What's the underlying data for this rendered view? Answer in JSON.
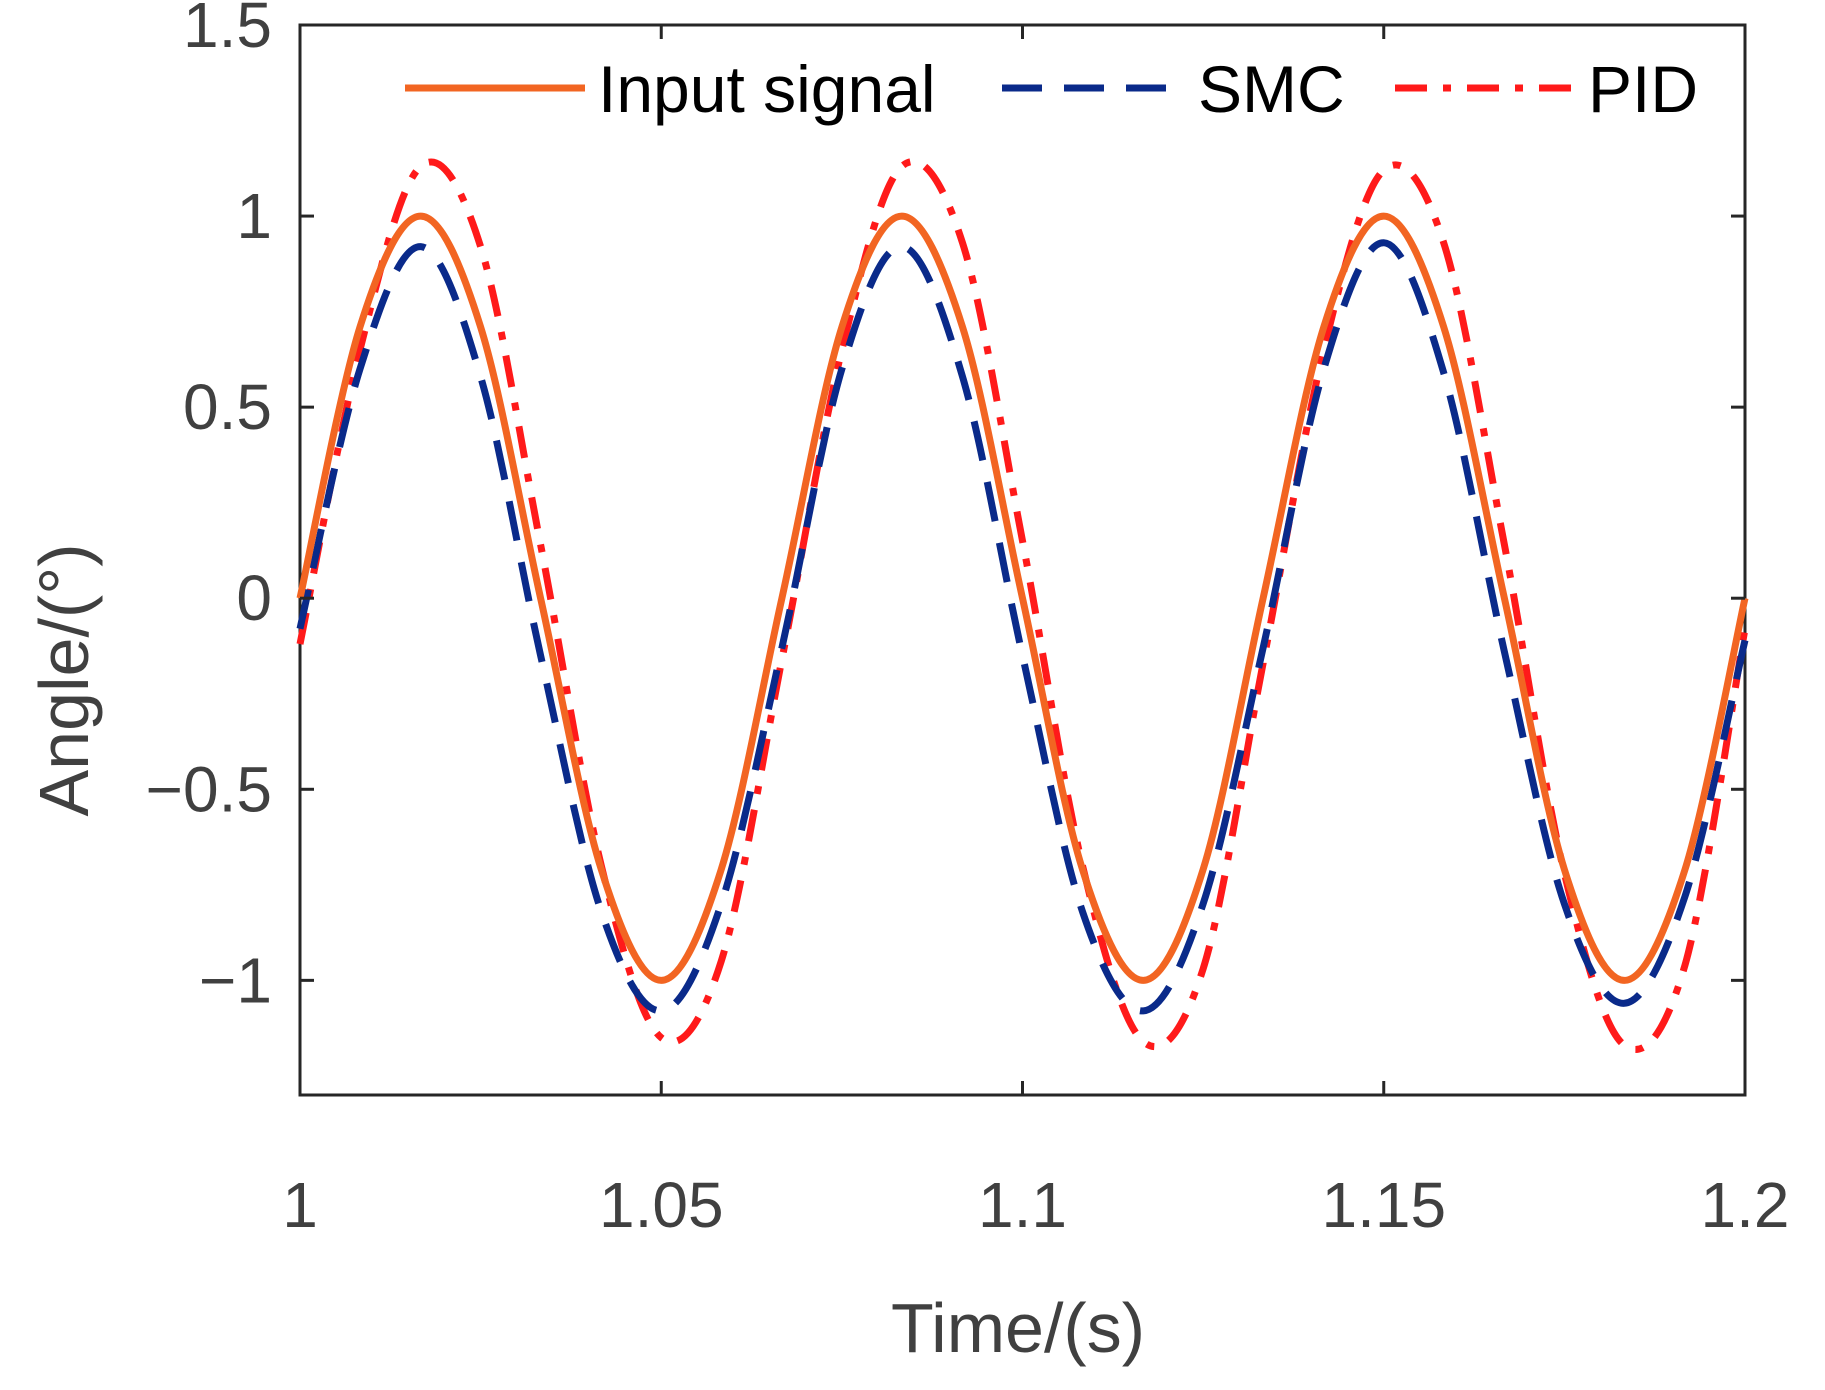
{
  "chart_data": {
    "type": "line",
    "title": "",
    "xlabel": "Time/(s)",
    "ylabel": "Angle/(°)",
    "xlim": [
      1,
      1.2
    ],
    "ylim": [
      -1.3,
      1.5
    ],
    "xticks": [
      1,
      1.05,
      1.1,
      1.15,
      1.2
    ],
    "xtick_labels": [
      "1",
      "1.05",
      "1.1",
      "1.15",
      "1.2"
    ],
    "yticks": [
      -1,
      -0.5,
      0,
      0.5,
      1,
      1.5
    ],
    "ytick_labels": [
      "−1",
      "−0.5",
      "0",
      "0.5",
      "1",
      "1.5"
    ],
    "grid": false,
    "legend_position": "top-right",
    "series": [
      {
        "name": "Input signal",
        "color": "#F26522",
        "style": "solid",
        "x": [
          1.0,
          1.0083,
          1.0167,
          1.025,
          1.0333,
          1.0417,
          1.05,
          1.0583,
          1.0667,
          1.075,
          1.0833,
          1.0917,
          1.1,
          1.1083,
          1.1167,
          1.125,
          1.1333,
          1.1417,
          1.15,
          1.1583,
          1.1667,
          1.175,
          1.1833,
          1.1917,
          1.2
        ],
        "y": [
          0,
          0.71,
          1.0,
          0.71,
          0,
          -0.71,
          -1.0,
          -0.71,
          0,
          0.71,
          1.0,
          0.71,
          0,
          -0.71,
          -1.0,
          -0.71,
          0,
          0.71,
          1.0,
          0.71,
          0,
          -0.71,
          -1.0,
          -0.71,
          0
        ]
      },
      {
        "name": "SMC",
        "color": "#0A2A8A",
        "style": "dashed",
        "x": [
          1.0,
          1.0083,
          1.0167,
          1.025,
          1.0333,
          1.0417,
          1.05,
          1.0583,
          1.0667,
          1.075,
          1.0833,
          1.0917,
          1.1,
          1.1083,
          1.1167,
          1.125,
          1.1333,
          1.1417,
          1.15,
          1.1583,
          1.1667,
          1.175,
          1.1833,
          1.1917,
          1.2
        ],
        "y": [
          -0.08,
          0.6,
          0.92,
          0.58,
          -0.15,
          -0.82,
          -1.08,
          -0.8,
          -0.13,
          0.6,
          0.92,
          0.58,
          -0.15,
          -0.82,
          -1.08,
          -0.8,
          -0.13,
          0.6,
          0.93,
          0.59,
          -0.14,
          -0.8,
          -1.06,
          -0.78,
          -0.11
        ]
      },
      {
        "name": "PID",
        "color": "#FF1A1A",
        "style": "dash-dot",
        "x": [
          1.0,
          1.0083,
          1.0167,
          1.025,
          1.0333,
          1.0417,
          1.05,
          1.0583,
          1.0667,
          1.075,
          1.0833,
          1.0917,
          1.1,
          1.1083,
          1.1167,
          1.125,
          1.1333,
          1.1417,
          1.15,
          1.1583,
          1.1667,
          1.175,
          1.1833,
          1.1917,
          1.2
        ],
        "y": [
          -0.12,
          0.65,
          1.13,
          0.92,
          0.14,
          -0.7,
          -1.15,
          -0.95,
          -0.16,
          0.65,
          1.13,
          0.93,
          0.15,
          -0.7,
          -1.16,
          -0.97,
          -0.17,
          0.65,
          1.12,
          0.93,
          0.14,
          -0.72,
          -1.17,
          -0.96,
          -0.08
        ]
      }
    ]
  }
}
